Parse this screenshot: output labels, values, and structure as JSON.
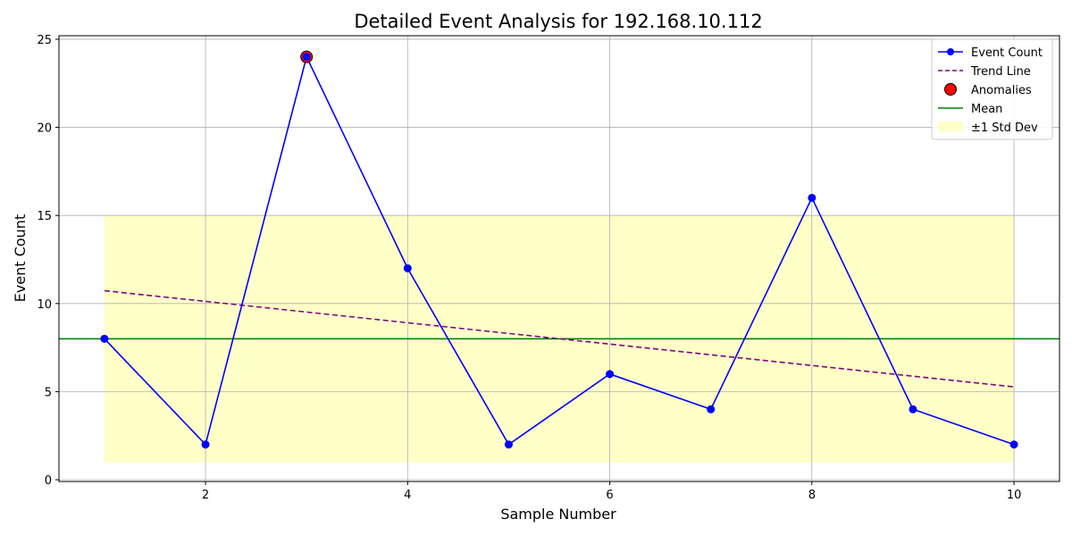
{
  "chart_data": {
    "type": "line",
    "title": "Detailed Event Analysis for 192.168.10.112",
    "xlabel": "Sample Number",
    "ylabel": "Event Count",
    "xlim": [
      0.55,
      10.45
    ],
    "ylim": [
      -0.1,
      25.2
    ],
    "xticks": [
      2,
      4,
      6,
      8,
      10
    ],
    "yticks": [
      0,
      5,
      10,
      15,
      20,
      25
    ],
    "grid": true,
    "legend_position": "top-right",
    "x": [
      1,
      2,
      3,
      4,
      5,
      6,
      7,
      8,
      9,
      10
    ],
    "series": [
      {
        "name": "Event Count",
        "values": [
          8,
          2,
          24,
          12,
          2,
          6,
          4,
          16,
          4,
          2
        ],
        "color": "#0000ff",
        "style": "line-marker"
      },
      {
        "name": "Trend Line",
        "values_start_end": [
          10.73,
          5.27
        ],
        "color": "#800080",
        "style": "dashed"
      },
      {
        "name": "Anomalies",
        "points": [
          {
            "x": 3,
            "y": 24
          }
        ],
        "color": "#ff0000",
        "style": "marker"
      },
      {
        "name": "Mean",
        "value": 8,
        "color": "#008000",
        "style": "hline"
      },
      {
        "name": "±1 Std Dev",
        "band": [
          1,
          15
        ],
        "color": "#ffffc8",
        "style": "band"
      }
    ]
  }
}
